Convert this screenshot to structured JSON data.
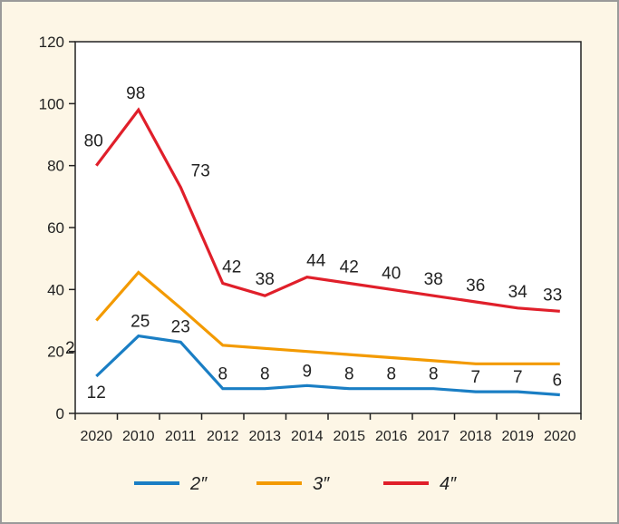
{
  "chart_data": {
    "type": "line",
    "categories": [
      "2020",
      "2010",
      "2011",
      "2012",
      "2013",
      "2014",
      "2015",
      "2016",
      "2017",
      "2018",
      "2019",
      "2020"
    ],
    "ylim": [
      0,
      120
    ],
    "yticks": [
      0,
      20,
      40,
      60,
      80,
      100,
      120
    ],
    "grid": false,
    "legend_position": "bottom",
    "series": [
      {
        "name": "2″",
        "color": "#1a7ec4",
        "values": [
          12,
          25,
          23,
          8,
          8,
          9,
          8,
          8,
          8,
          7,
          7,
          6
        ],
        "show_labels": true
      },
      {
        "name": "3″",
        "color": "#f39a00",
        "values": [
          30,
          45.5,
          34,
          22,
          21,
          20,
          19,
          18,
          17,
          16,
          16,
          16
        ],
        "show_labels": false
      },
      {
        "name": "4″",
        "color": "#e01f2a",
        "values": [
          80,
          98,
          73,
          42,
          38,
          44,
          42,
          40,
          38,
          36,
          34,
          33
        ],
        "show_labels": true
      }
    ],
    "stray_label": "2"
  }
}
